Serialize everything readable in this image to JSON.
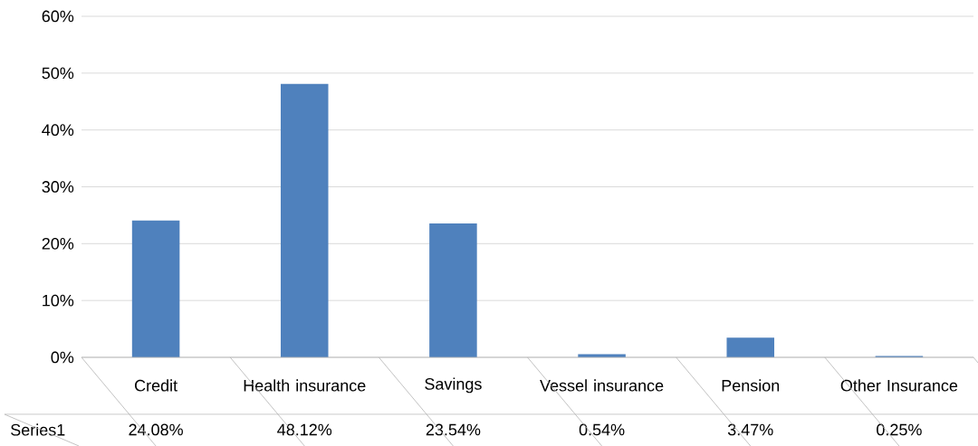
{
  "chart_data": {
    "type": "bar",
    "categories": [
      "Credit",
      "Health insurance",
      "Savings",
      "Vessel insurance",
      "Pension",
      "Other Insurance"
    ],
    "series": [
      {
        "name": "Series1",
        "color": "#4f81bd",
        "values": [
          24.08,
          48.12,
          23.54,
          0.54,
          3.47,
          0.25
        ],
        "value_labels": [
          "24.08%",
          "48.12%",
          "23.54%",
          "0.54%",
          "3.47%",
          "0.25%"
        ]
      }
    ],
    "ylim": [
      0,
      60
    ],
    "yticks": [
      {
        "value": 0,
        "label": "0%"
      },
      {
        "value": 10,
        "label": "10%"
      },
      {
        "value": 20,
        "label": "20%"
      },
      {
        "value": 30,
        "label": "30%"
      },
      {
        "value": 40,
        "label": "40%"
      },
      {
        "value": 50,
        "label": "50%"
      },
      {
        "value": 60,
        "label": "60%"
      }
    ],
    "grid": "y"
  }
}
